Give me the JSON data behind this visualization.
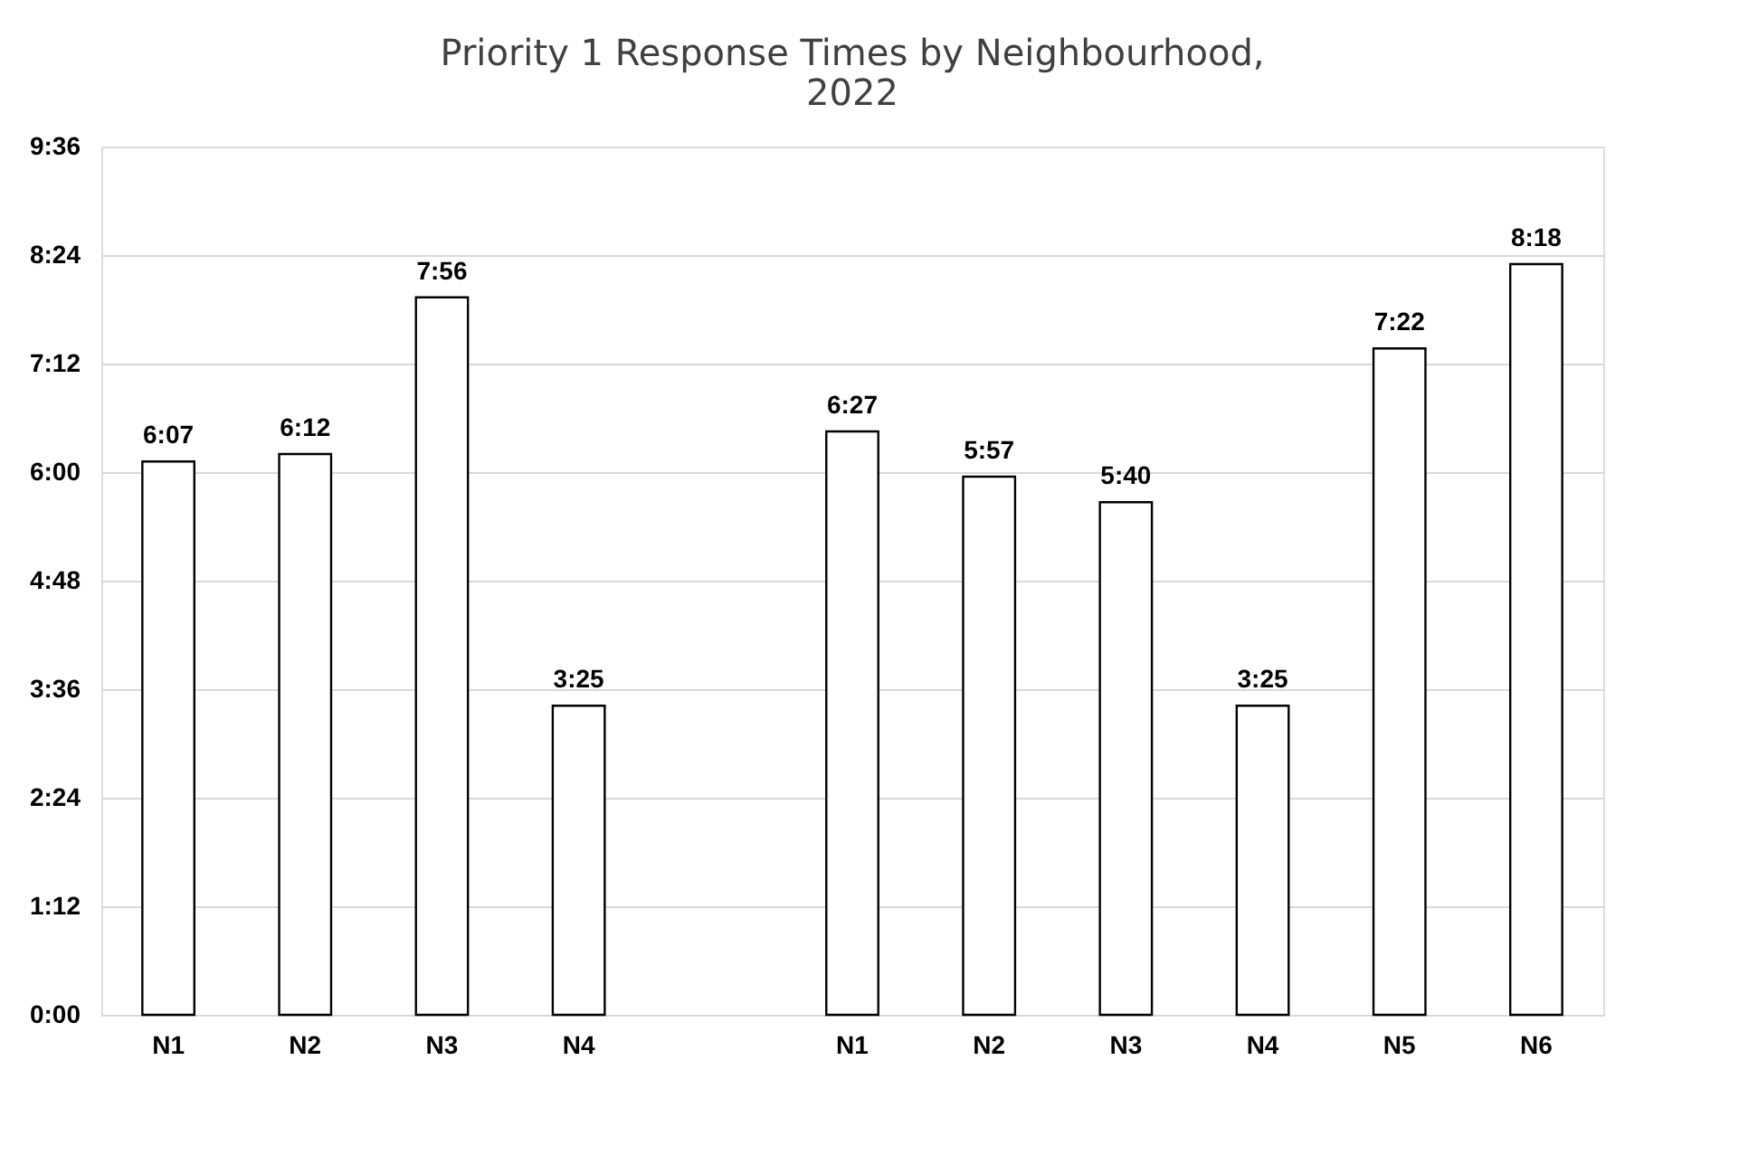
{
  "chart_data": {
    "type": "bar",
    "title": "Priority 1 Response Times by Neighbourhood, 2022",
    "categories": [
      "N1",
      "N2",
      "N3",
      "N4",
      null,
      "N1",
      "N2",
      "N3",
      "N4",
      "N5",
      "N6"
    ],
    "values": [
      6.117,
      6.2,
      7.933,
      3.417,
      null,
      6.45,
      5.95,
      5.667,
      3.417,
      7.367,
      8.3
    ],
    "value_labels": [
      "6:07",
      "6:12",
      "7:56",
      "3:25",
      null,
      "6:27",
      "5:57",
      "5:40",
      "3:25",
      "7:22",
      "8:18"
    ],
    "color": "#ffffff",
    "ylim": [
      0,
      9.6
    ],
    "yticks": [
      {
        "value": 0,
        "label": "0:00"
      },
      {
        "value": 1.2,
        "label": "1:12"
      },
      {
        "value": 2.4,
        "label": "2:24"
      },
      {
        "value": 3.6,
        "label": "3:36"
      },
      {
        "value": 4.8,
        "label": "4:48"
      },
      {
        "value": 6.0,
        "label": "6:00"
      },
      {
        "value": 7.2,
        "label": "7:12"
      },
      {
        "value": 8.4,
        "label": "8:24"
      },
      {
        "value": 9.6,
        "label": "9:36"
      }
    ],
    "grid": "y"
  }
}
